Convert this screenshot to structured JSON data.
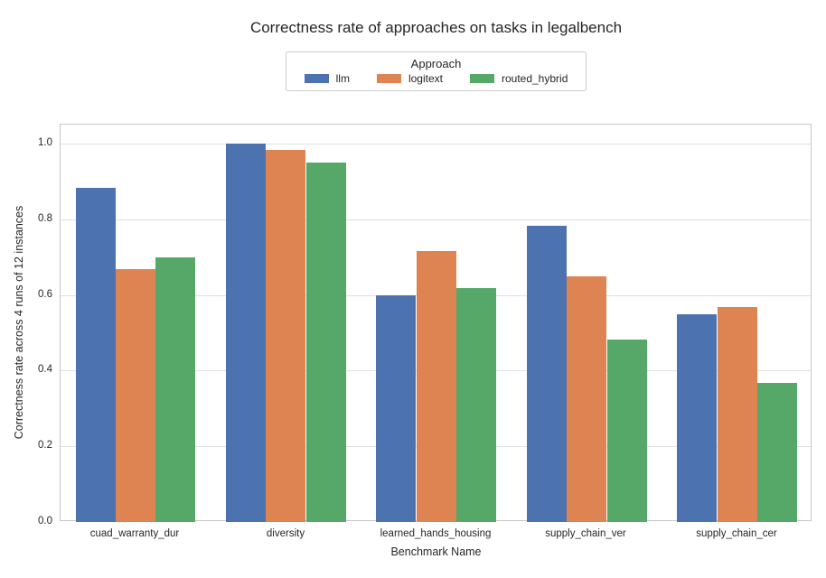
{
  "figure": {
    "background": "#ffffff",
    "text_color": "#262626",
    "grid_color": "#e0e0e0",
    "spine_color": "#c6c6c6",
    "legend_border_color": "#cccccc"
  },
  "legend": {
    "title": "Approach",
    "items": [
      {
        "label": "llm",
        "color": "#4C72B0"
      },
      {
        "label": "logitext",
        "color": "#DD8452"
      },
      {
        "label": "routed_hybrid",
        "color": "#55A868"
      }
    ]
  },
  "chart_data": {
    "type": "bar",
    "title": "Correctness rate of approaches on tasks in legalbench",
    "xlabel": "Benchmark Name",
    "ylabel": "Correctness rate across 4 runs of 12 instances",
    "categories": [
      "cuad_warranty_dur",
      "diversity",
      "learned_hands_housing",
      "supply_chain_ver",
      "supply_chain_cer"
    ],
    "series": [
      {
        "name": "llm",
        "color": "#4C72B0",
        "values": [
          0.883,
          1.0,
          0.6,
          0.783,
          0.55
        ]
      },
      {
        "name": "logitext",
        "color": "#DD8452",
        "values": [
          0.667,
          0.983,
          0.717,
          0.65,
          0.567
        ]
      },
      {
        "name": "routed_hybrid",
        "color": "#55A868",
        "values": [
          0.7,
          0.95,
          0.617,
          0.483,
          0.367
        ]
      }
    ],
    "ylim": [
      0,
      1.05
    ],
    "yticks": [
      0.0,
      0.2,
      0.4,
      0.6,
      0.8,
      1.0
    ],
    "ytick_labels": [
      "0.0",
      "0.2",
      "0.4",
      "0.6",
      "0.8",
      "1.0"
    ],
    "grid": true,
    "legend_title": "Approach",
    "legend_position": "upper center"
  }
}
